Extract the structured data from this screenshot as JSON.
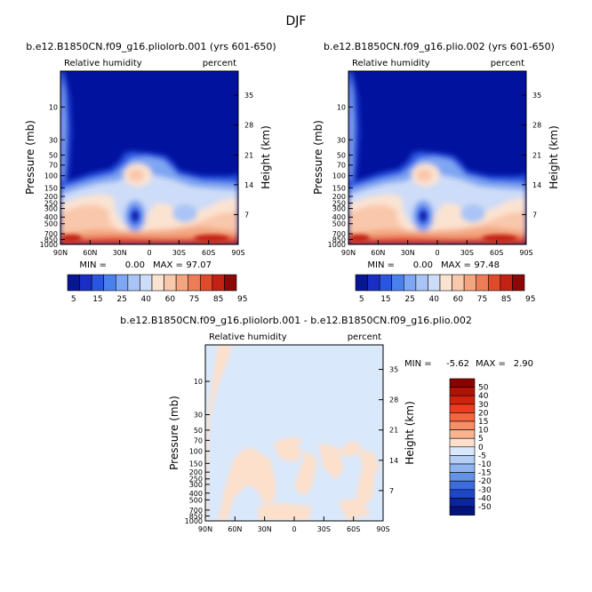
{
  "page_title": "DJF",
  "chart_data": [
    {
      "type": "heatmap",
      "title": "b.e12.B1850CN.f09_g16.pliolorb.001 (yrs 601-650)",
      "variable": "Relative humidity",
      "units": "percent",
      "ylabel": "Pressure (mb)",
      "right_label": "Height (km)",
      "x_ticks": [
        "90N",
        "60N",
        "30N",
        "0",
        "30S",
        "60S",
        "90S"
      ],
      "p_ticks": [
        "10",
        "30",
        "50",
        "70",
        "100",
        "150",
        "200",
        "250",
        "300",
        "400",
        "500",
        "700",
        "850",
        "1000"
      ],
      "h_ticks": [
        "35",
        "28",
        "21",
        "14",
        "7"
      ],
      "min_label": "MIN =",
      "min": "0.00",
      "max_label": "MAX =",
      "max": "97.07",
      "colorbar_labels": [
        "5",
        "15",
        "25",
        "40",
        "60",
        "75",
        "85",
        "95"
      ]
    },
    {
      "type": "heatmap",
      "title": "b.e12.B1850CN.f09_g16.plio.002 (yrs 601-650)",
      "variable": "Relative humidity",
      "units": "percent",
      "ylabel": "Pressure (mb)",
      "right_label": "Height (km)",
      "x_ticks": [
        "90N",
        "60N",
        "30N",
        "0",
        "30S",
        "60S",
        "90S"
      ],
      "p_ticks": [
        "10",
        "30",
        "50",
        "70",
        "100",
        "150",
        "200",
        "250",
        "300",
        "400",
        "500",
        "700",
        "850",
        "1000"
      ],
      "h_ticks": [
        "35",
        "28",
        "21",
        "14",
        "7"
      ],
      "min_label": "MIN =",
      "min": "0.00",
      "max_label": "MAX =",
      "max": "97.48",
      "colorbar_labels": [
        "5",
        "15",
        "25",
        "40",
        "60",
        "75",
        "85",
        "95"
      ]
    },
    {
      "type": "heatmap",
      "title": "b.e12.B1850CN.f09_g16.pliolorb.001 - b.e12.B1850CN.f09_g16.plio.002",
      "variable": "Relative humidity",
      "units": "percent",
      "ylabel": "Pressure (mb)",
      "right_label": "Height (km)",
      "x_ticks": [
        "90N",
        "60N",
        "30N",
        "0",
        "30S",
        "60S",
        "90S"
      ],
      "p_ticks": [
        "10",
        "30",
        "50",
        "70",
        "100",
        "150",
        "200",
        "250",
        "300",
        "400",
        "500",
        "700",
        "850",
        "1000"
      ],
      "h_ticks": [
        "35",
        "28",
        "21",
        "14",
        "7"
      ],
      "min_label": "MIN =",
      "min": "-5.62",
      "max_label": "MAX =",
      "max": "2.90",
      "colorbar_labels": [
        "50",
        "40",
        "30",
        "20",
        "15",
        "10",
        "5",
        "0",
        "-5",
        "-10",
        "-15",
        "-20",
        "-30",
        "-40",
        "-50"
      ]
    }
  ],
  "colors": {
    "background": "#ffffff",
    "deep_blue": "#00129e",
    "abs_scale": [
      "#08168f",
      "#1a2dc4",
      "#2a55e0",
      "#4a7fee",
      "#7fa6f2",
      "#a9c4f5",
      "#cddcf8",
      "#fbe3d1",
      "#f9c7ab",
      "#f3a57f",
      "#ec7d57",
      "#e04a2d",
      "#c32114",
      "#8c0707"
    ],
    "diff_scale": [
      "#8b0000",
      "#b01208",
      "#d0230f",
      "#ea3c1e",
      "#f4663f",
      "#f78f66",
      "#f9b38e",
      "#fce0cc",
      "#d9e8fb",
      "#b5cff4",
      "#8eb3ee",
      "#6591e6",
      "#3c6ddd",
      "#1d46c9",
      "#0d23a0",
      "#05127a"
    ]
  }
}
